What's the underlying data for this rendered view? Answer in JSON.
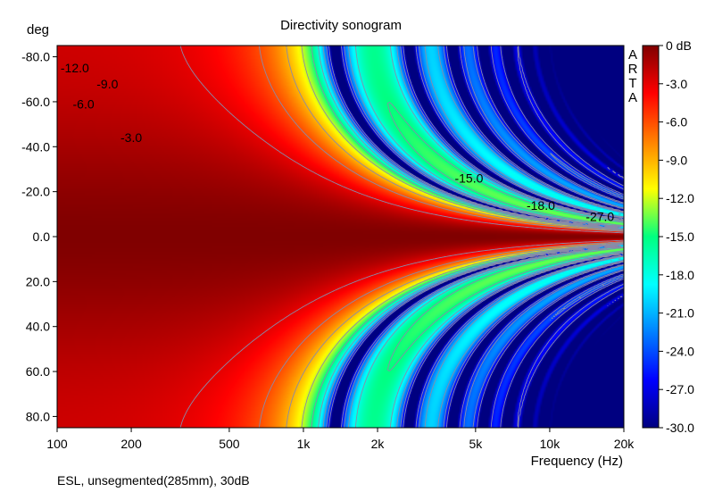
{
  "chart_data": {
    "type": "heatmap",
    "title": "Directivity sonogram",
    "ylabel": "deg",
    "xlabel": "Frequency (Hz)",
    "footer": "ESL, unsegmented(285mm), 30dB",
    "watermark": "ARTA",
    "x_scale": "log",
    "xlim": [
      100,
      20000
    ],
    "ylim": [
      -85,
      85
    ],
    "y_reversed": true,
    "x_ticks": [
      {
        "value": 100,
        "label": "100"
      },
      {
        "value": 200,
        "label": "200"
      },
      {
        "value": 500,
        "label": "500"
      },
      {
        "value": 1000,
        "label": "1k"
      },
      {
        "value": 2000,
        "label": "2k"
      },
      {
        "value": 5000,
        "label": "5k"
      },
      {
        "value": 10000,
        "label": "10k"
      },
      {
        "value": 20000,
        "label": "20k"
      }
    ],
    "y_ticks": [
      {
        "value": -80,
        "label": "-80.0"
      },
      {
        "value": -60,
        "label": "-60.0"
      },
      {
        "value": -40,
        "label": "-40.0"
      },
      {
        "value": -20,
        "label": "-20.0"
      },
      {
        "value": 0,
        "label": "0.0"
      },
      {
        "value": 20,
        "label": "20.0"
      },
      {
        "value": 40,
        "label": "40.0"
      },
      {
        "value": 60,
        "label": "60.0"
      },
      {
        "value": 80,
        "label": "80.0"
      }
    ],
    "colorbar": {
      "range_db": [
        -30,
        0
      ],
      "ticks": [
        "0 dB",
        "-3.0",
        "-6.0",
        "-9.0",
        "-12.0",
        "-15.0",
        "-18.0",
        "-21.0",
        "-24.0",
        "-27.0",
        "-30.0"
      ],
      "tick_values": [
        0,
        -3,
        -6,
        -9,
        -12,
        -15,
        -18,
        -21,
        -24,
        -27,
        -30
      ],
      "colors": [
        "#800000",
        "#ff0000",
        "#ff8000",
        "#ffff00",
        "#00ff80",
        "#00ffff",
        "#0080ff",
        "#0000ff",
        "#000080"
      ]
    },
    "background_color": "#000080",
    "contour_labels": [
      {
        "text": "-12.0",
        "freq": 118,
        "deg": -75
      },
      {
        "text": "-9.0",
        "freq": 160,
        "deg": -68
      },
      {
        "text": "-6.0",
        "freq": 128,
        "deg": -59
      },
      {
        "text": "-3.0",
        "freq": 200,
        "deg": -44
      },
      {
        "text": "-15.0",
        "freq": 4700,
        "deg": -26
      },
      {
        "text": "-18.0",
        "freq": 9200,
        "deg": -14
      },
      {
        "text": "-27.0",
        "freq": 16000,
        "deg": -9
      }
    ],
    "contour_model": {
      "comment_free": true,
      "source_width_m": 0.285,
      "levels_db": [
        -3,
        -6,
        -9,
        -12,
        -15,
        -18,
        -21,
        -24,
        -27
      ]
    }
  }
}
